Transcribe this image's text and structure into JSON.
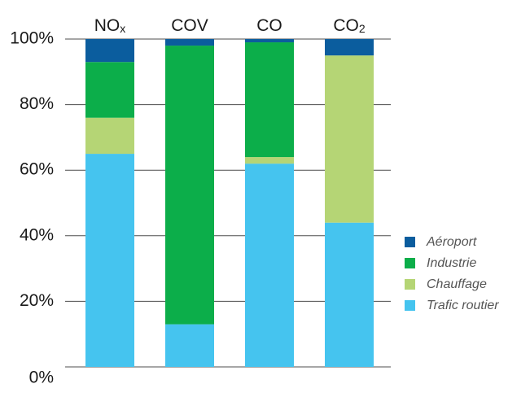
{
  "chart_data": {
    "type": "bar",
    "stacked": true,
    "title": "",
    "xlabel": "",
    "ylabel": "",
    "ylim": [
      0,
      100
    ],
    "y_ticks": [
      "0%",
      "20%",
      "40%",
      "60%",
      "80%",
      "100%"
    ],
    "y_tick_values": [
      0,
      20,
      40,
      60,
      80,
      100
    ],
    "grid": "horizontal",
    "legend_position": "right",
    "categories": [
      {
        "base": "NO",
        "sub": "x"
      },
      {
        "base": "COV",
        "sub": ""
      },
      {
        "base": "CO",
        "sub": ""
      },
      {
        "base": "CO",
        "sub": "2"
      }
    ],
    "series": [
      {
        "name": "Trafic routier",
        "color": "#45c4ef",
        "values": [
          65,
          13,
          62,
          44
        ]
      },
      {
        "name": "Chauffage",
        "color": "#b5d575",
        "values": [
          11,
          0,
          2,
          51
        ]
      },
      {
        "name": "Industrie",
        "color": "#0cae4a",
        "values": [
          17,
          85,
          35,
          0
        ]
      },
      {
        "name": "Aéroport",
        "color": "#0b5d9e",
        "values": [
          7,
          2,
          1,
          5
        ]
      }
    ],
    "legend_order": [
      "Aéroport",
      "Industrie",
      "Chauffage",
      "Trafic routier"
    ]
  }
}
